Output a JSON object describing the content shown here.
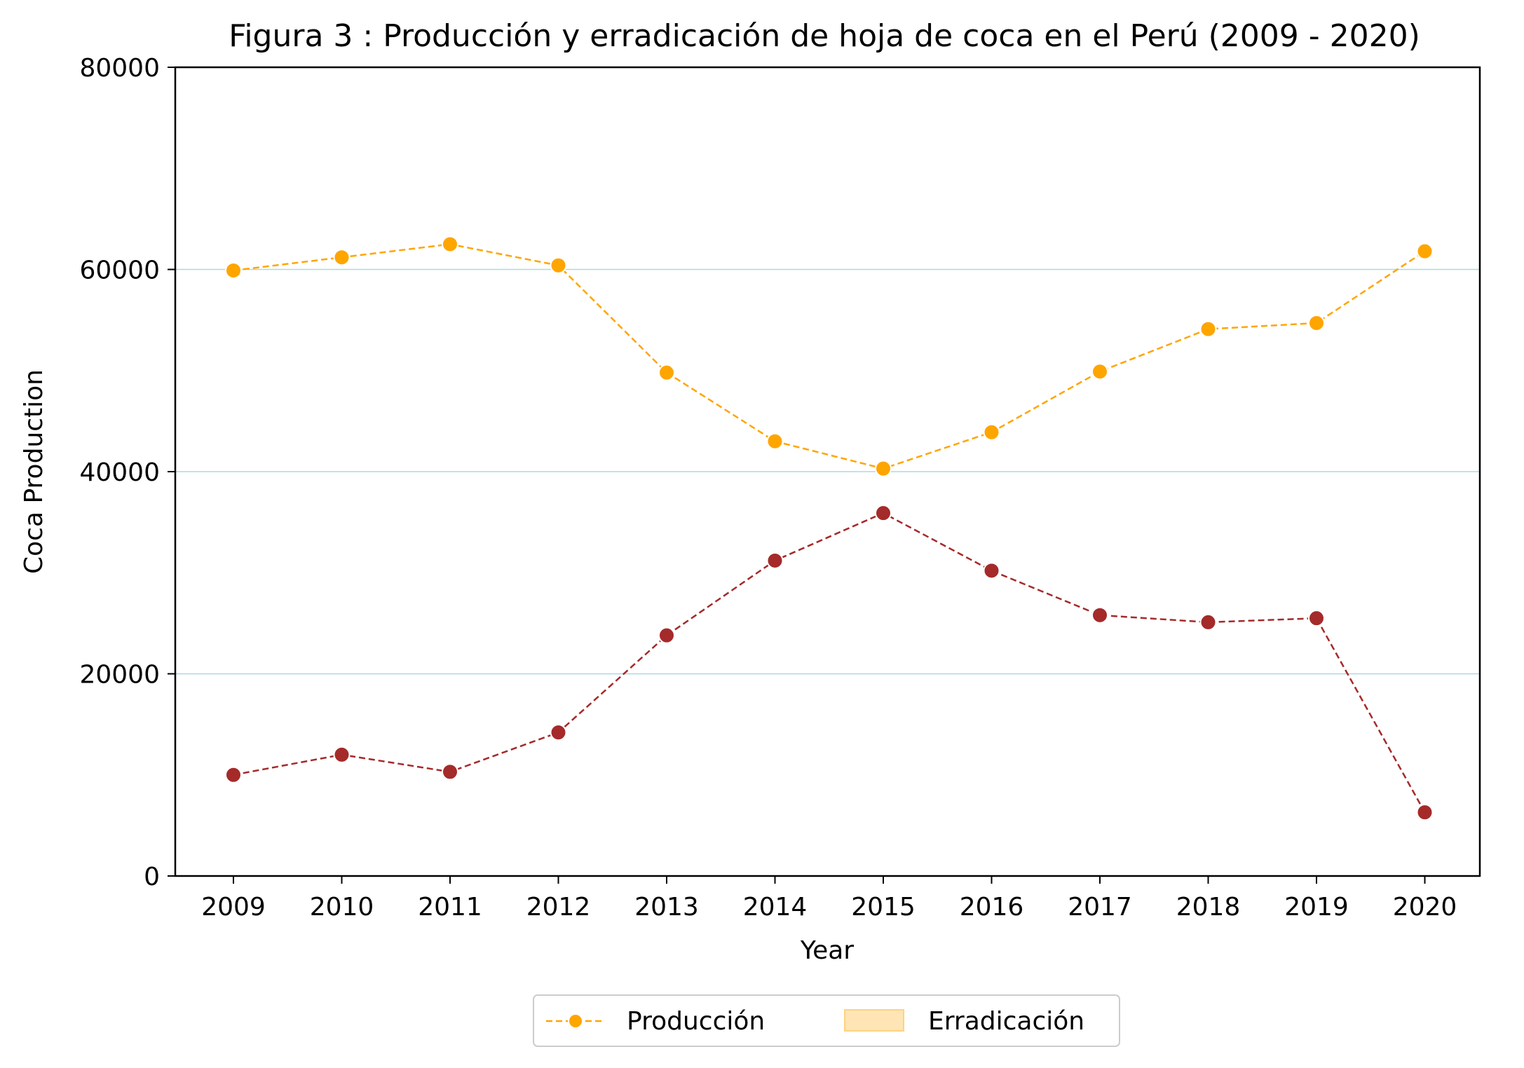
{
  "chart_data": {
    "type": "line",
    "title": "Figura 3 : Producción y erradicación de hoja de coca en el Perú (2009 - 2020)",
    "xlabel": "Year",
    "ylabel": "Coca Production",
    "ylim": [
      0,
      80000
    ],
    "yticks": [
      "0",
      "20000",
      "40000",
      "60000",
      "80000"
    ],
    "x": [
      2009,
      2010,
      2011,
      2012,
      2013,
      2014,
      2015,
      2016,
      2017,
      2018,
      2019,
      2020
    ],
    "xtick_labels": [
      "2009",
      "2010",
      "2011",
      "2012",
      "2013",
      "2014",
      "2015",
      "2016",
      "2017",
      "2018",
      "2019",
      "2020"
    ],
    "grid": "horizontal",
    "legend_position": "bottom-center",
    "legend": [
      "Producción",
      "Erradicación"
    ],
    "series": [
      {
        "name": "Producción",
        "color": "#ffa500",
        "style": "dashed-marker",
        "values": [
          59900,
          61200,
          62500,
          60400,
          49800,
          43000,
          40300,
          43900,
          49900,
          54100,
          54700,
          61800
        ]
      },
      {
        "color": "#a52a2a",
        "style": "dashed-marker",
        "values": [
          10000,
          12000,
          10300,
          14200,
          23800,
          31200,
          35900,
          30200,
          25800,
          25100,
          25500,
          6300
        ]
      }
    ],
    "colors": {
      "grid": "#add8e6",
      "legend_patch": "#ffe4b5"
    }
  }
}
